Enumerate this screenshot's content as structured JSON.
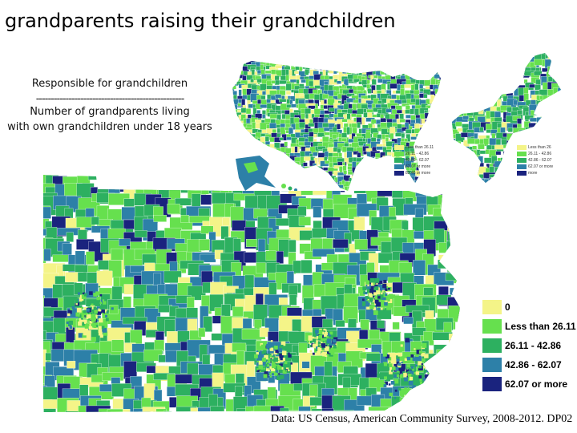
{
  "title": "grandparents raising their grandchildren",
  "formula": {
    "numerator": "Responsible for grandchildren",
    "divider": "--------------------------------------------------",
    "denominator_line1": "Number of grandparents living",
    "denominator_line2": "with own grandchildren under 18 years"
  },
  "source": "Data: US Census, American Community Survey, 2008-2012. DP02",
  "colors": {
    "zero": "#f4f488",
    "c1": "#66e04e",
    "c2": "#2db060",
    "c3": "#2d80a8",
    "c4": "#1a237e"
  },
  "legend": {
    "items": [
      {
        "label": "0",
        "color": "#f4f488"
      },
      {
        "label": "Less than 26.11",
        "color": "#66e04e"
      },
      {
        "label": "26.11 - 42.86",
        "color": "#2db060"
      },
      {
        "label": "42.86 - 62.07",
        "color": "#2d80a8"
      },
      {
        "label": "62.07 or more",
        "color": "#1a237e"
      }
    ]
  },
  "us_legend": {
    "items": [
      {
        "label": "Less than 26.11",
        "color": "#f4f488"
      },
      {
        "label": "26.11 - 42.86",
        "color": "#66e04e"
      },
      {
        "label": "42.86 - 62.07",
        "color": "#2db060"
      },
      {
        "label": "62.07 or more",
        "color": "#2d80a8"
      },
      {
        "label": "82.46 or more",
        "color": "#1a237e"
      }
    ]
  },
  "ne_legend": {
    "items": [
      {
        "label": "Less than 26",
        "color": "#f4f488"
      },
      {
        "label": "26.11 - 42.86",
        "color": "#66e04e"
      },
      {
        "label": "42.86 - 62.07",
        "color": "#2db060"
      },
      {
        "label": "62.07 or more",
        "color": "#2d80a8"
      },
      {
        "label": "more",
        "color": "#1a237e"
      }
    ]
  }
}
